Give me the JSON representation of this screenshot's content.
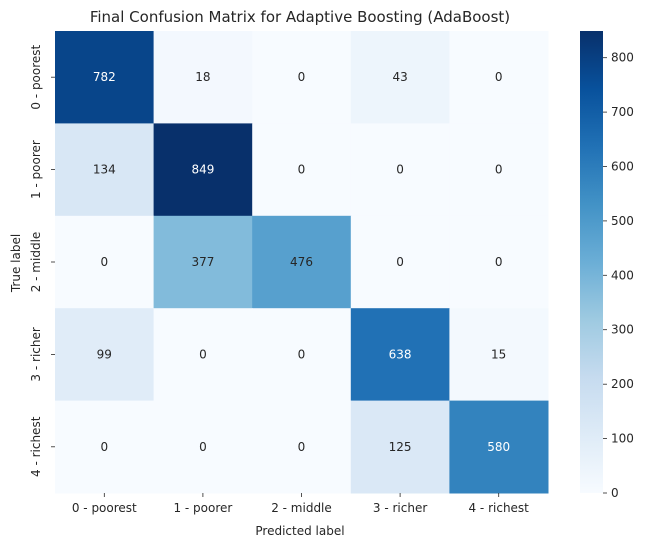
{
  "chart_data": {
    "type": "heatmap",
    "title": "Final Confusion Matrix for Adaptive Boosting (AdaBoost)",
    "xlabel": "Predicted label",
    "ylabel": "True label",
    "x_categories": [
      "0 - poorest",
      "1 - poorer",
      "2 - middle",
      "3 - richer",
      "4 - richest"
    ],
    "y_categories": [
      "0 - poorest",
      "1 - poorer",
      "2 - middle",
      "3 - richer",
      "4 - richest"
    ],
    "matrix": [
      [
        782,
        18,
        0,
        43,
        0
      ],
      [
        134,
        849,
        0,
        0,
        0
      ],
      [
        0,
        377,
        476,
        0,
        0
      ],
      [
        99,
        0,
        0,
        638,
        15
      ],
      [
        0,
        0,
        0,
        125,
        580
      ]
    ],
    "colorbar": {
      "min": 0,
      "max": 849,
      "ticks": [
        0,
        100,
        200,
        300,
        400,
        500,
        600,
        700,
        800
      ]
    },
    "colormap": "Blues",
    "colormap_stops": [
      "#f7fbff",
      "#deebf7",
      "#c6dbef",
      "#9ecae1",
      "#6baed6",
      "#4292c6",
      "#2171b5",
      "#08519c",
      "#08306b"
    ]
  }
}
